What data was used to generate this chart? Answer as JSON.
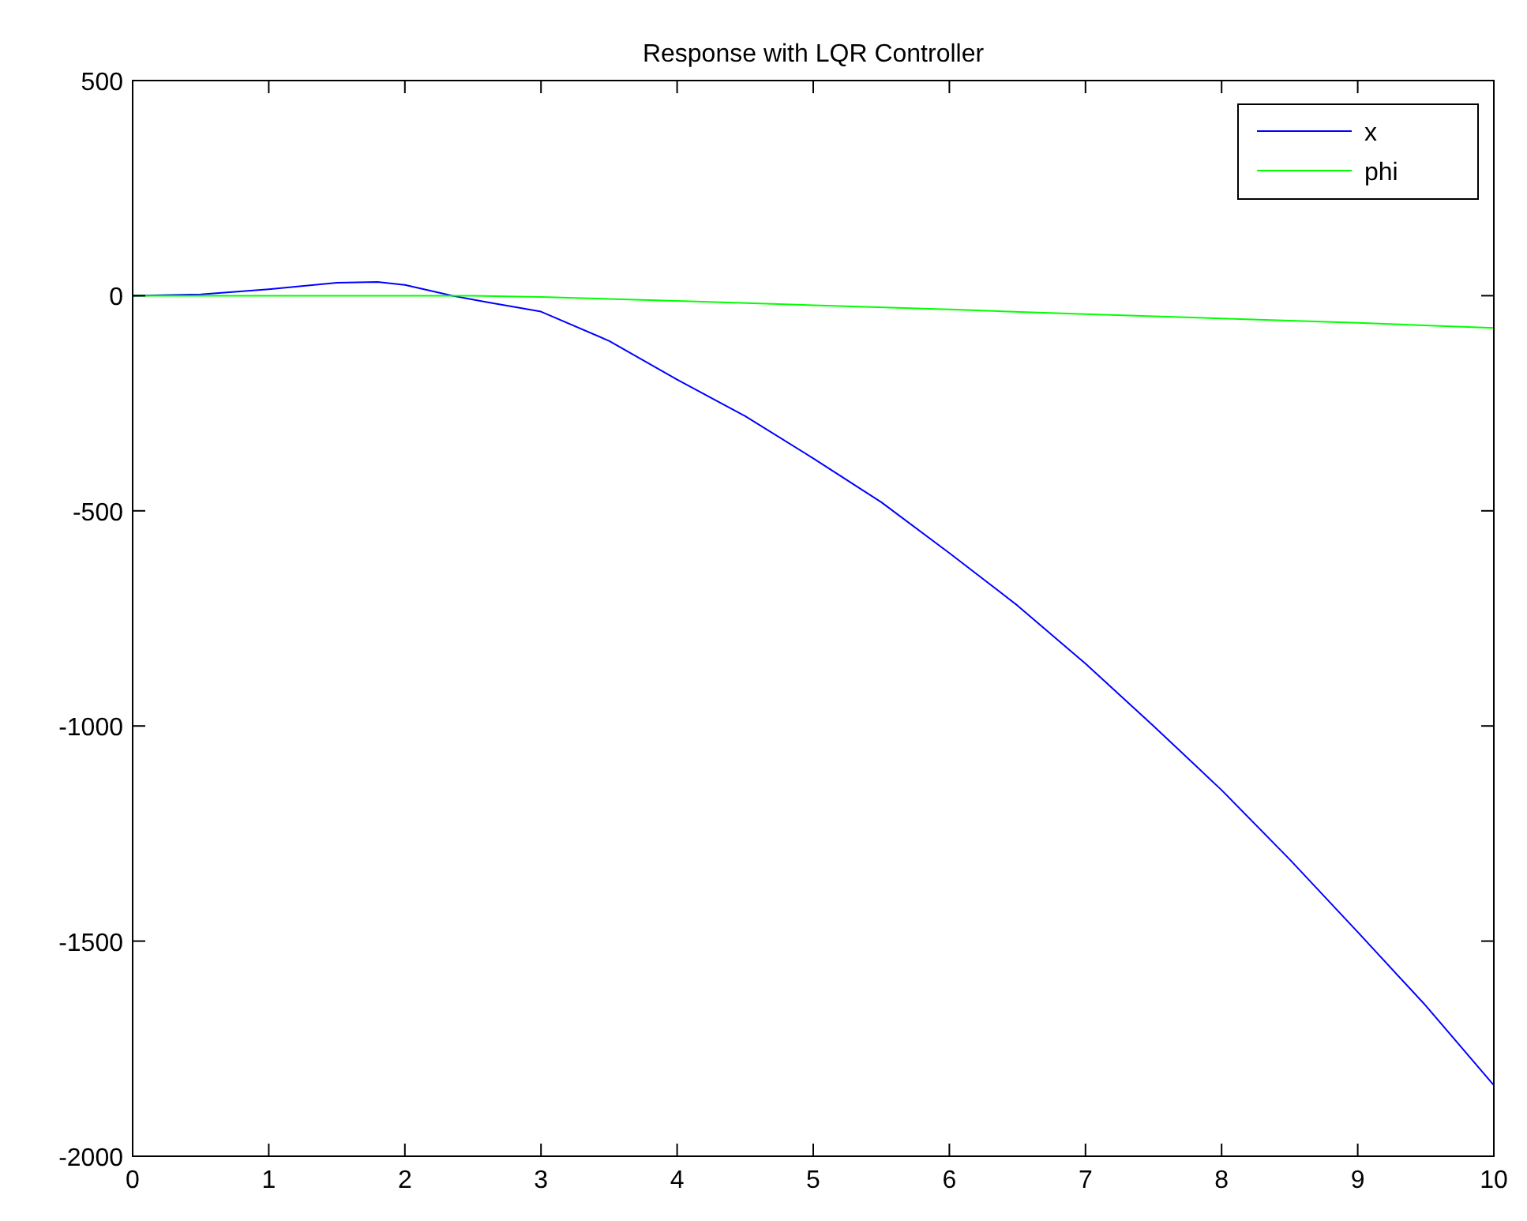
{
  "chart_data": {
    "type": "line",
    "title": "Response with LQR Controller",
    "xlim": [
      0,
      10
    ],
    "xticks": [
      0,
      1,
      2,
      3,
      4,
      5,
      6,
      7,
      8,
      9,
      10
    ],
    "ylim": [
      -2000,
      500
    ],
    "yticks": [
      -2000,
      -1500,
      -1000,
      -500,
      0,
      500
    ],
    "grid": false,
    "legend": "top right",
    "series": [
      {
        "name": "x",
        "color": "#0000ff",
        "x": [
          0,
          0.5,
          1,
          1.5,
          1.8,
          2,
          2.35,
          2.6,
          3,
          3.5,
          4,
          4.5,
          5,
          5.5,
          6,
          6.5,
          7,
          7.5,
          8,
          8.5,
          9,
          9.5,
          10
        ],
        "values": [
          0,
          3,
          15,
          30,
          32,
          25,
          0,
          -15,
          -37,
          -105,
          -195,
          -280,
          -378,
          -480,
          -598,
          -720,
          -855,
          -1000,
          -1149,
          -1310,
          -1479,
          -1650,
          -1835
        ]
      },
      {
        "name": "phi",
        "color": "#00ff00",
        "x": [
          0,
          1,
          2,
          2.5,
          3,
          4,
          5,
          6,
          7,
          8,
          9,
          10
        ],
        "values": [
          0,
          0,
          0,
          0,
          -3,
          -12,
          -22,
          -32,
          -43,
          -53,
          -63,
          -75
        ]
      }
    ]
  }
}
